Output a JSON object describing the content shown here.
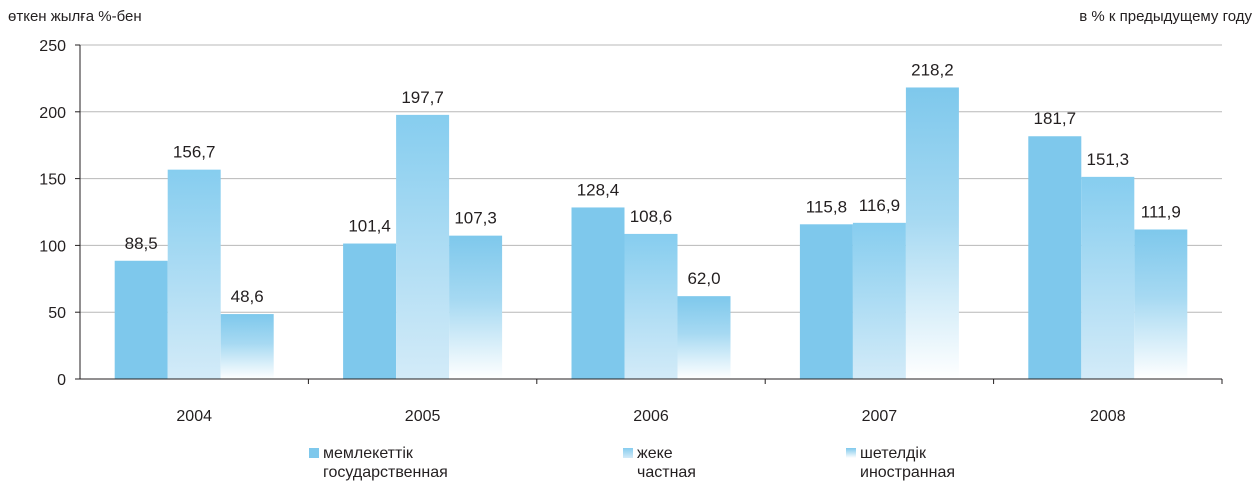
{
  "chart_data": {
    "type": "bar",
    "unit_label_left": "өткен жылға %-бен",
    "unit_label_right": "в % к предыдущему году",
    "categories": [
      "2004",
      "2005",
      "2006",
      "2007",
      "2008"
    ],
    "series": [
      {
        "name": "мемлекеттік / государственная",
        "name_kz": "мемлекеттік",
        "name_ru": "государственная",
        "values": [
          88.5,
          101.4,
          128.4,
          115.8,
          181.7
        ],
        "labels": [
          "88,5",
          "101,4",
          "128,4",
          "115,8",
          "181,7"
        ],
        "color": "#7ec8ec",
        "fill": "solid"
      },
      {
        "name": "жеке / частная",
        "name_kz": "жеке",
        "name_ru": "частная",
        "values": [
          156.7,
          197.7,
          108.6,
          116.9,
          151.3
        ],
        "labels": [
          "156,7",
          "197,7",
          "108,6",
          "116,9",
          "151,3"
        ],
        "color": "#7ec8ec",
        "fill": "gradient-light"
      },
      {
        "name": "шетелдік / иностранная",
        "name_kz": "шетелдік",
        "name_ru": "иностранная",
        "values": [
          48.6,
          107.3,
          62.0,
          218.2,
          111.9
        ],
        "labels": [
          "48,6",
          "107,3",
          "62,0",
          "218,2",
          "111,9"
        ],
        "color": "#7ec8ec",
        "fill": "gradient-white"
      }
    ],
    "yticks": [
      "0",
      "50",
      "100",
      "150",
      "200",
      "250"
    ],
    "ylim": [
      0,
      250
    ],
    "grid": true,
    "legend_position": "bottom",
    "axis_color": "#231f20",
    "grid_color": "#b8b8b8"
  }
}
